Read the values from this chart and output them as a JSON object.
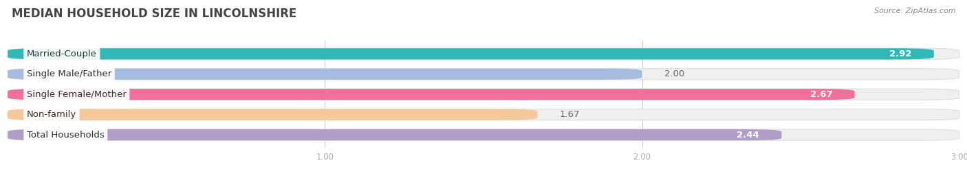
{
  "title": "MEDIAN HOUSEHOLD SIZE IN LINCOLNSHIRE",
  "source": "Source: ZipAtlas.com",
  "categories": [
    "Married-Couple",
    "Single Male/Father",
    "Single Female/Mother",
    "Non-family",
    "Total Households"
  ],
  "values": [
    2.92,
    2.0,
    2.67,
    1.67,
    2.44
  ],
  "bar_colors": [
    "#33b8b8",
    "#a8bce0",
    "#f0709a",
    "#f5c89a",
    "#b09ec8"
  ],
  "bar_bg_colors": [
    "#efefef",
    "#efefef",
    "#efefef",
    "#efefef",
    "#efefef"
  ],
  "fig_bg_color": "#ffffff",
  "xticks": [
    1.0,
    2.0,
    3.0
  ],
  "xmin": 0.0,
  "xmax": 3.0,
  "label_fontsize": 9.5,
  "value_fontsize": 9.5,
  "title_fontsize": 12,
  "source_fontsize": 8,
  "bar_height": 0.55,
  "bar_gap": 1.0,
  "title_color": "#444444",
  "source_color": "#888888",
  "tick_color": "#aaaaaa",
  "grid_color": "#cccccc",
  "value_inside_color": "#ffffff",
  "value_outside_color": "#666666"
}
